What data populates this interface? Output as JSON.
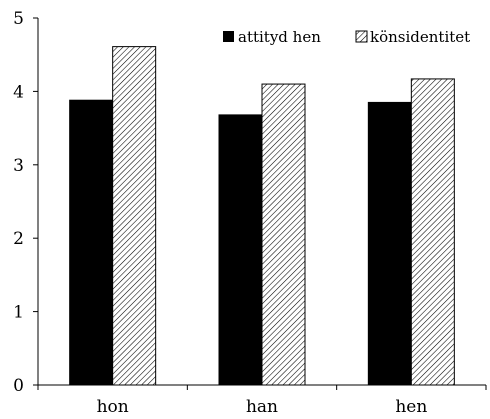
{
  "chart_data": {
    "type": "bar",
    "categories": [
      "hon",
      "han",
      "hen"
    ],
    "series": [
      {
        "name": "attityd hen",
        "values": [
          3.88,
          3.68,
          3.85
        ],
        "color": "#000000",
        "pattern": "solid"
      },
      {
        "name": "könsidentitet",
        "values": [
          4.61,
          4.1,
          4.17
        ],
        "color": "#000000",
        "pattern": "diagonal-hatch"
      }
    ],
    "ylim": [
      0,
      5
    ],
    "yticks": [
      "0",
      "1",
      "2",
      "3",
      "4",
      "5"
    ],
    "grid": false,
    "legend_position": "top-right"
  }
}
